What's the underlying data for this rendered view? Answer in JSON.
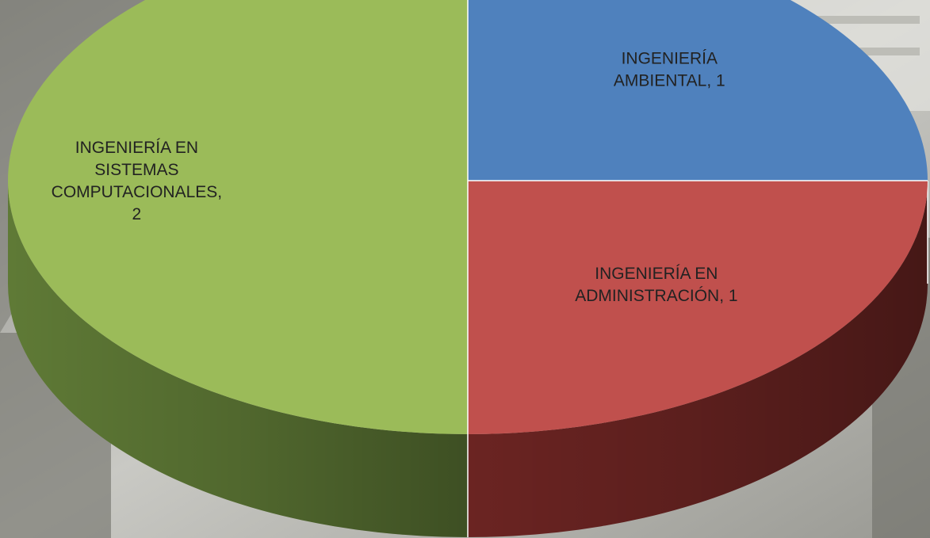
{
  "chart_data": {
    "type": "pie",
    "style": "3d",
    "title": "",
    "slices": [
      {
        "label": "INGENIERÍA AMBIENTAL",
        "value": 1,
        "color": "#4f81bd",
        "side_color": "#2e4f78",
        "label_lines": [
          "INGENIERÍA",
          "AMBIENTAL, 1"
        ]
      },
      {
        "label": "INGENIERÍA EN ADMINISTRACIÓN",
        "value": 1,
        "color": "#c0504d",
        "side_color": "#6b2422",
        "label_lines": [
          "INGENIERÍA EN",
          "ADMINISTRACIÓN, 1"
        ]
      },
      {
        "label": "INGENIERÍA EN SISTEMAS COMPUTACIONALES",
        "value": 2,
        "color": "#9bbb59",
        "side_color": "#5f7a36",
        "label_lines": [
          "INGENIERÍA EN",
          "SISTEMAS",
          "COMPUTACIONALES,",
          "2"
        ]
      }
    ],
    "legend": "none",
    "data_labels": "category, value"
  }
}
